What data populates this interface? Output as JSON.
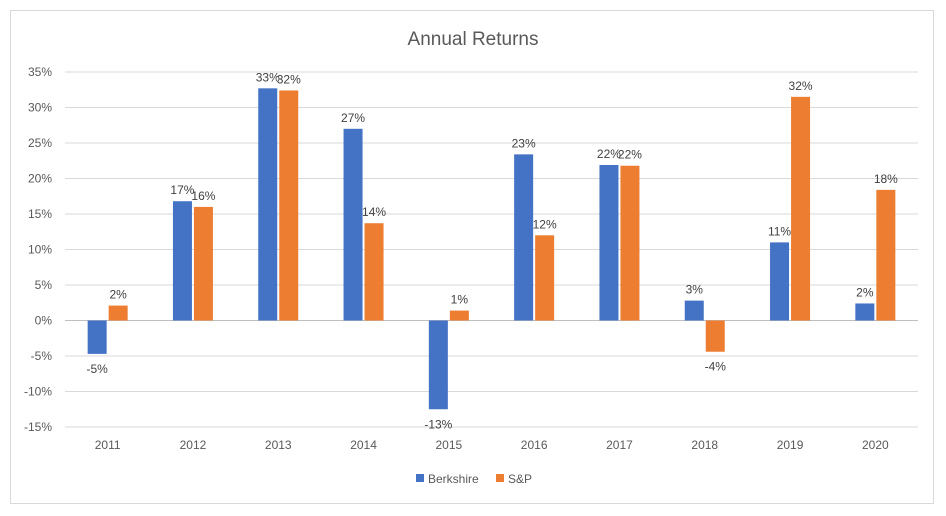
{
  "chart_data": {
    "type": "bar",
    "title": "Annual Returns",
    "xlabel": "",
    "ylabel": "",
    "categories": [
      "2011",
      "2012",
      "2013",
      "2014",
      "2015",
      "2016",
      "2017",
      "2018",
      "2019",
      "2020"
    ],
    "series": [
      {
        "name": "Berkshire",
        "color": "#4472C4",
        "values": [
          -4.7,
          16.8,
          32.7,
          27.0,
          -12.5,
          23.4,
          21.9,
          2.8,
          11.0,
          2.4
        ],
        "labels": [
          "-5%",
          "17%",
          "33%",
          "27%",
          "-13%",
          "23%",
          "22%",
          "3%",
          "11%",
          "2%"
        ]
      },
      {
        "name": "S&P",
        "color": "#ED7D31",
        "values": [
          2.1,
          16.0,
          32.4,
          13.7,
          1.4,
          12.0,
          21.8,
          -4.4,
          31.5,
          18.4
        ],
        "labels": [
          "2%",
          "16%",
          "32%",
          "14%",
          "1%",
          "12%",
          "22%",
          "-4%",
          "32%",
          "18%"
        ]
      }
    ],
    "ylim": [
      -15,
      35
    ],
    "yticks": [
      35,
      30,
      25,
      20,
      15,
      10,
      5,
      0,
      -5,
      -10,
      -15
    ],
    "ytick_labels": [
      "35%",
      "30%",
      "25%",
      "20%",
      "15%",
      "10%",
      "5%",
      "0%",
      "-5%",
      "-10%",
      "-15%"
    ],
    "grid": true,
    "legend_position": "bottom"
  }
}
